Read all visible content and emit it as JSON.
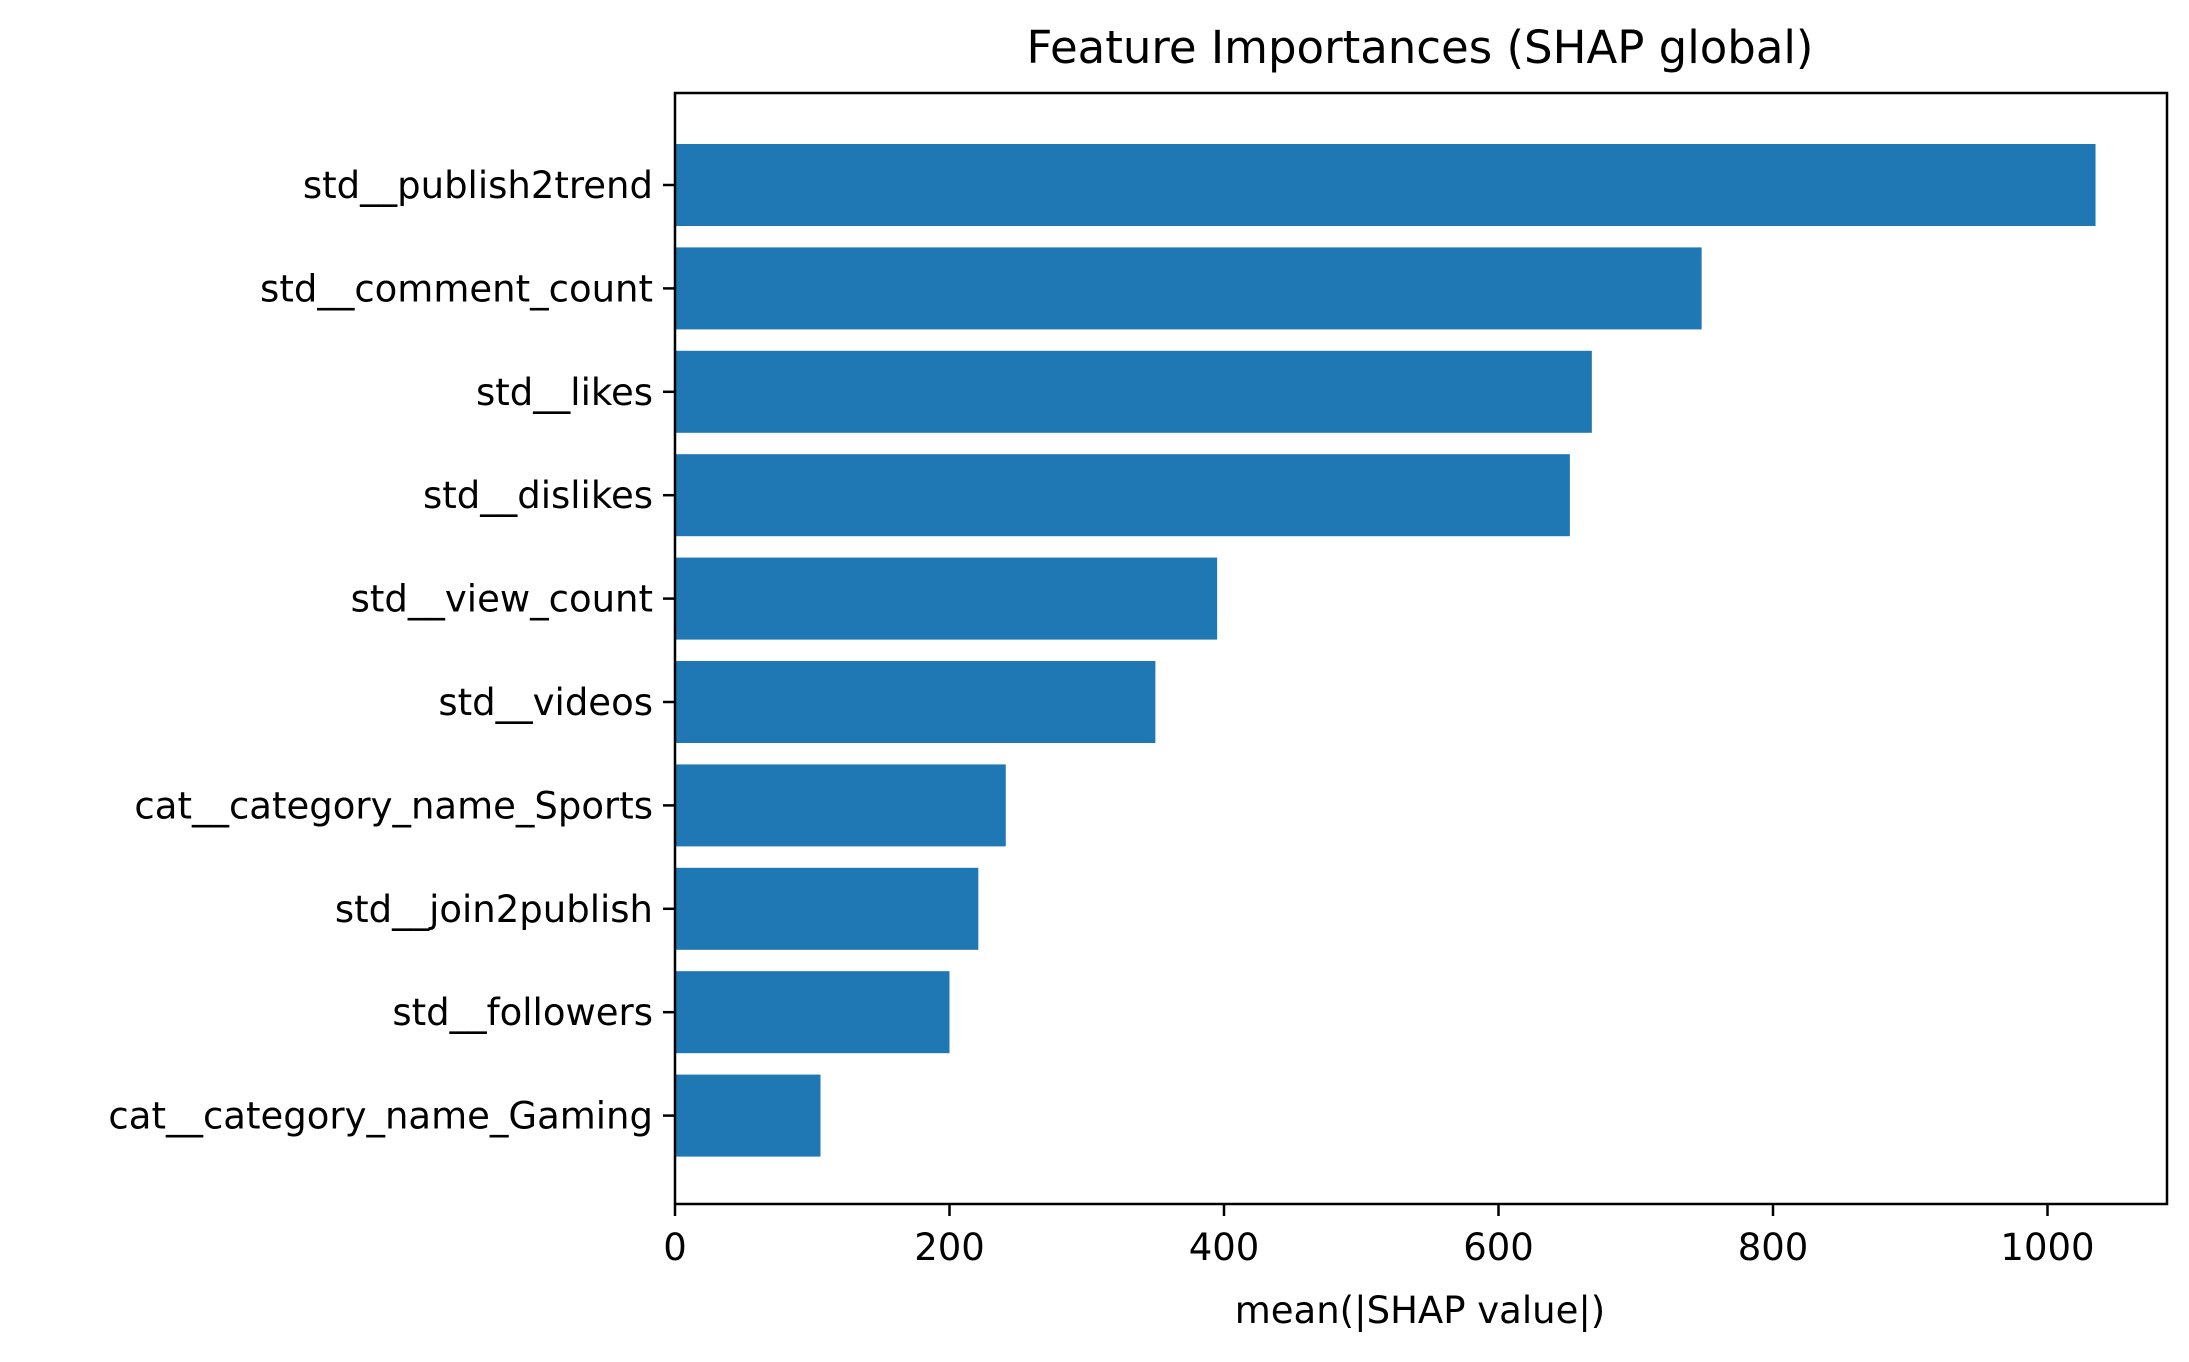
{
  "chart_data": {
    "type": "bar",
    "orientation": "horizontal",
    "title": "Feature Importances (SHAP global)",
    "xlabel": "mean(|SHAP value|)",
    "ylabel": "",
    "xlim": [
      0,
      1085
    ],
    "xticks": [
      0,
      200,
      400,
      600,
      800,
      1000
    ],
    "xtick_labels": [
      "0",
      "200",
      "400",
      "600",
      "800",
      "1000"
    ],
    "categories": [
      "std__publish2trend",
      "std__comment_count",
      "std__likes",
      "std__dislikes",
      "std__view_count",
      "std__videos",
      "cat__category_name_Sports",
      "std__join2publish",
      "std__followers",
      "cat__category_name_Gaming"
    ],
    "values": [
      1035,
      748,
      668,
      652,
      395,
      350,
      241,
      221,
      200,
      106
    ],
    "bar_color": "#1f77b4",
    "grid": false,
    "legend": "none"
  }
}
